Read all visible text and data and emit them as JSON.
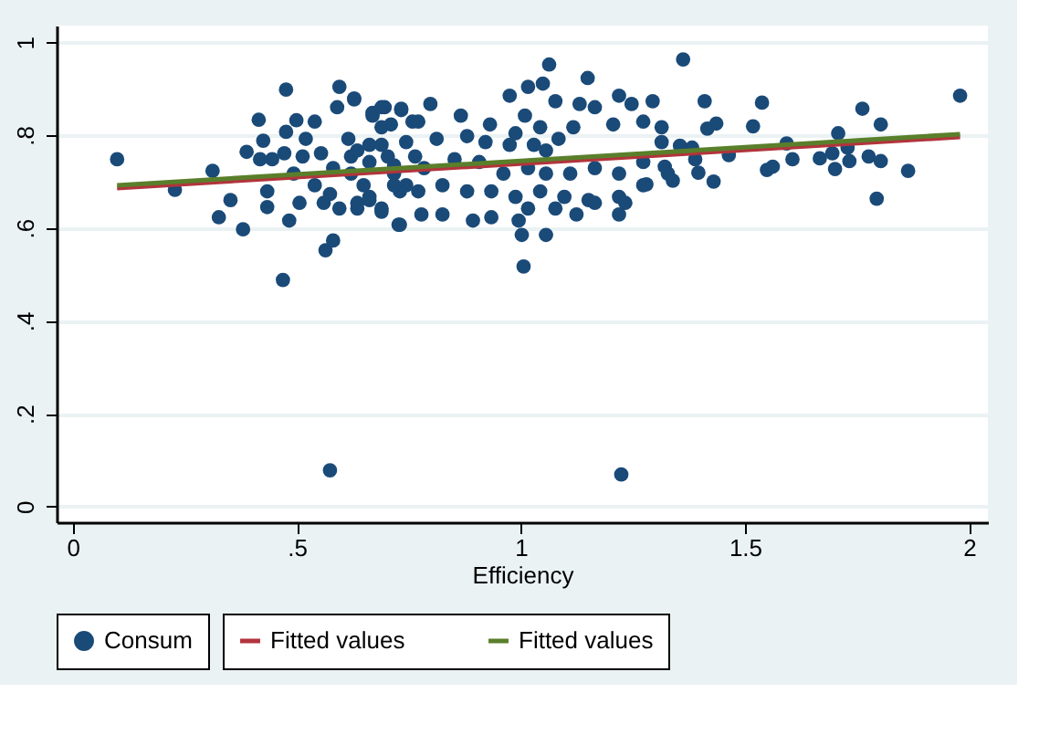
{
  "chart_data": {
    "type": "scatter",
    "xlabel": "Efficiency",
    "xlim": [
      -0.036,
      2.042
    ],
    "ylim": [
      -0.034,
      1.036
    ],
    "xticks": [
      0,
      {
        "value": 0.5,
        "label": ".5"
      },
      1,
      {
        "value": 1.5,
        "label": "1.5"
      },
      2
    ],
    "yticks": [
      0,
      {
        "value": 0.2,
        "label": ".2"
      },
      {
        "value": 0.4,
        "label": ".4"
      },
      {
        "value": 0.6,
        "label": ".6"
      },
      {
        "value": 0.8,
        "label": ".8"
      },
      1
    ],
    "grid": "y",
    "legend": "bottom",
    "series": [
      {
        "name": "Consum",
        "marker": "circle",
        "color": "#1a4a78",
        "x": [
          0.099,
          0.476,
          0.595,
          0.628,
          0.59,
          0.415,
          0.499,
          0.54,
          0.669,
          0.696,
          0.733,
          0.476,
          0.52,
          0.425,
          0.388,
          0.418,
          0.312,
          0.228,
          0.352,
          0.434,
          0.434,
          0.326,
          0.38,
          0.483,
          0.506,
          0.564,
          0.581,
          0.469,
          0.727,
          0.56,
          0.595,
          0.635,
          0.662,
          0.689,
          0.493,
          0.54,
          0.581,
          0.621,
          0.662,
          0.703,
          0.717,
          0.744,
          0.621,
          0.689,
          0.71,
          0.758,
          0.615,
          0.554,
          0.513,
          0.445,
          0.472,
          0.574,
          0.649,
          0.73,
          0.764,
          1.063,
          1.149,
          0.628,
          0.689,
          0.733,
          0.798,
          0.866,
          0.931,
          0.771,
          0.669,
          0.975,
          1.016,
          1.049,
          1.077,
          1.131,
          1.165,
          1.219,
          1.247,
          1.294,
          1.314,
          1.206,
          1.117,
          0.975,
          0.921,
          0.88,
          0.812,
          0.744,
          0.689,
          0.635,
          0.662,
          0.717,
          0.784,
          0.852,
          0.907,
          0.961,
          1.016,
          1.056,
          1.11,
          1.165,
          1.219,
          1.273,
          1.328,
          1.273,
          1.219,
          1.151,
          1.097,
          1.043,
          0.988,
          0.934,
          0.88,
          0.825,
          0.771,
          0.717,
          0.662,
          0.635,
          0.689,
          0.73,
          0.778,
          0.825,
          0.893,
          0.934,
          0.995,
          1.002,
          1.056,
          1.077,
          1.124,
          1.165,
          1.219,
          1.233,
          1.006,
          1.016,
          1.029,
          1.043,
          1.009,
          1.056,
          1.084,
          0.988,
          1.362,
          1.98,
          1.41,
          1.538,
          1.762,
          1.436,
          1.416,
          1.518,
          1.803,
          1.273,
          1.314,
          1.355,
          1.382,
          1.593,
          1.708,
          1.729,
          1.464,
          1.606,
          1.667,
          1.695,
          1.733,
          1.776,
          1.803,
          1.321,
          1.396,
          1.549,
          1.562,
          1.701,
          1.864,
          1.28,
          1.339,
          1.43,
          1.794,
          1.389,
          0.574,
          1.224
        ],
        "values": [
          0.748,
          0.898,
          0.904,
          0.877,
          0.86,
          0.833,
          0.832,
          0.829,
          0.848,
          0.86,
          0.854,
          0.807,
          0.792,
          0.788,
          0.764,
          0.748,
          0.723,
          0.682,
          0.66,
          0.679,
          0.645,
          0.623,
          0.597,
          0.616,
          0.654,
          0.552,
          0.573,
          0.488,
          0.607,
          0.654,
          0.642,
          0.654,
          0.66,
          0.635,
          0.717,
          0.692,
          0.729,
          0.754,
          0.779,
          0.754,
          0.717,
          0.692,
          0.717,
          0.817,
          0.823,
          0.829,
          0.792,
          0.761,
          0.754,
          0.748,
          0.761,
          0.673,
          0.692,
          0.679,
          0.754,
          0.952,
          0.923,
          0.879,
          0.86,
          0.857,
          0.867,
          0.842,
          0.823,
          0.829,
          0.842,
          0.885,
          0.904,
          0.911,
          0.873,
          0.867,
          0.86,
          0.885,
          0.867,
          0.873,
          0.817,
          0.823,
          0.817,
          0.779,
          0.785,
          0.798,
          0.792,
          0.785,
          0.779,
          0.767,
          0.742,
          0.735,
          0.729,
          0.748,
          0.742,
          0.717,
          0.729,
          0.717,
          0.717,
          0.729,
          0.717,
          0.742,
          0.717,
          0.692,
          0.667,
          0.66,
          0.667,
          0.679,
          0.667,
          0.679,
          0.679,
          0.692,
          0.679,
          0.692,
          0.667,
          0.642,
          0.642,
          0.607,
          0.629,
          0.629,
          0.616,
          0.623,
          0.616,
          0.585,
          0.585,
          0.642,
          0.629,
          0.654,
          0.629,
          0.654,
          0.517,
          0.642,
          0.779,
          0.817,
          0.842,
          0.767,
          0.792,
          0.804,
          0.963,
          0.885,
          0.873,
          0.87,
          0.857,
          0.825,
          0.814,
          0.819,
          0.823,
          0.829,
          0.785,
          0.777,
          0.773,
          0.782,
          0.804,
          0.773,
          0.757,
          0.748,
          0.75,
          0.761,
          0.744,
          0.754,
          0.744,
          0.732,
          0.719,
          0.725,
          0.732,
          0.727,
          0.723,
          0.694,
          0.702,
          0.7,
          0.663,
          0.748,
          0.078,
          0.069
        ]
      },
      {
        "name": "Fitted values",
        "type": "line",
        "color": "#b2343c",
        "x": [
          0.099,
          1.98
        ],
        "values": [
          0.686,
          0.796
        ]
      },
      {
        "name": "Fitted values",
        "type": "line",
        "color": "#5a7f2b",
        "x": [
          0.099,
          1.98
        ],
        "values": [
          0.692,
          0.802
        ]
      }
    ]
  }
}
